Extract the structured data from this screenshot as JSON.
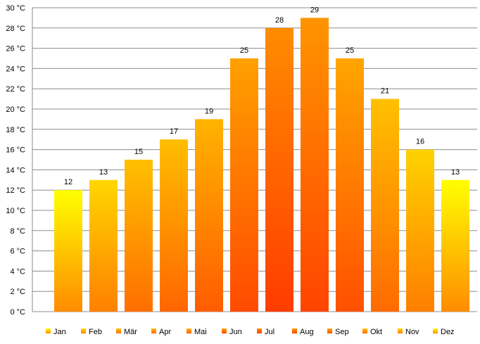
{
  "chart_data": {
    "type": "bar",
    "categories": [
      "Jan",
      "Feb",
      "Mär",
      "Apr",
      "Mai",
      "Jun",
      "Jul",
      "Aug",
      "Sep",
      "Okt",
      "Nov",
      "Dez"
    ],
    "values": [
      12,
      13,
      15,
      17,
      19,
      25,
      28,
      29,
      25,
      21,
      16,
      13
    ],
    "y_tick_labels": [
      "0 °C",
      "2 °C",
      "4 °C",
      "6 °C",
      "8 °C",
      "10 °C",
      "12 °C",
      "14 °C",
      "16 °C",
      "18 °C",
      "20 °C",
      "22 °C",
      "24 °C",
      "26 °C",
      "28 °C",
      "30 °C"
    ],
    "ylim": [
      0,
      30
    ],
    "y_tick_step": 2,
    "grid": true,
    "legend_position": "bottom",
    "show_data_labels": true,
    "bar_colors_top": [
      "#ffff00",
      "#ffd700",
      "#ffc000",
      "#ffbe00",
      "#ffb400",
      "#ffa000",
      "#ff8c00",
      "#ff9400",
      "#ffa500",
      "#ffc000",
      "#ffd200",
      "#ffff00"
    ],
    "bar_colors_bottom": [
      "#ff8c00",
      "#ff8000",
      "#ff6e00",
      "#ff6600",
      "#ff5c00",
      "#ff4a00",
      "#ff3c00",
      "#ff4400",
      "#ff5000",
      "#ff6a00",
      "#ff7e00",
      "#ff8c00"
    ]
  }
}
